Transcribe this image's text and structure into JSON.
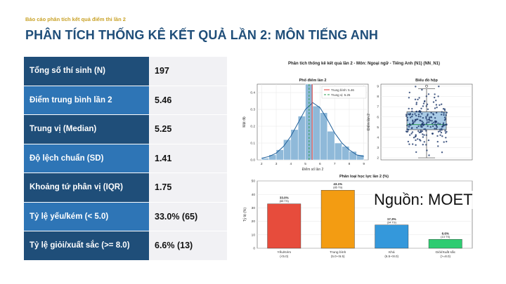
{
  "header": {
    "kicker": "Báo cáo phân tích kết quả điểm thi lần 2",
    "title": "PHÂN TÍCH THỐNG KÊ KẾT QUẢ LẦN 2: MÔN TIẾNG ANH"
  },
  "stats": [
    {
      "label": "Tổng số thí sinh (N)",
      "value": "197"
    },
    {
      "label": "Điểm trung bình lần 2",
      "value": "5.46"
    },
    {
      "label": "Trung vị (Median)",
      "value": "5.25"
    },
    {
      "label": "Độ lệch chuẩn (SD)",
      "value": "1.41"
    },
    {
      "label": "Khoảng tứ phân vị (IQR)",
      "value": "1.75"
    },
    {
      "label": "Tỷ lệ yếu/kém (< 5.0)",
      "value": "33.0% (65)"
    },
    {
      "label": "Tỷ lệ giỏi/xuất sắc (>= 8.0)",
      "value": "6.6% (13)"
    }
  ],
  "figure_title": "Phân tích thống kê kết quả lần 2 - Môn: Ngoại ngữ - Tiếng Anh (N1) (NN_N1)",
  "source": "Nguồn: MOET",
  "colors": {
    "dark_row": "#1f4e79",
    "light_row": "#2e75b6",
    "kicker": "#c9a227"
  },
  "chart_data": [
    {
      "type": "bar",
      "title": "Phổ điểm lần 2",
      "xlabel": "Điểm số lần 2",
      "ylabel": "Mật độ",
      "bins": [
        {
          "from": 2.0,
          "to": 2.5,
          "density": 0.01
        },
        {
          "from": 2.5,
          "to": 3.0,
          "density": 0.03
        },
        {
          "from": 3.0,
          "to": 3.5,
          "density": 0.06
        },
        {
          "from": 3.5,
          "to": 4.0,
          "density": 0.12
        },
        {
          "from": 4.0,
          "to": 4.5,
          "density": 0.18
        },
        {
          "from": 4.5,
          "to": 5.0,
          "density": 0.26
        },
        {
          "from": 5.0,
          "to": 5.5,
          "density": 0.45
        },
        {
          "from": 5.5,
          "to": 6.0,
          "density": 0.32
        },
        {
          "from": 6.0,
          "to": 6.5,
          "density": 0.28
        },
        {
          "from": 6.5,
          "to": 7.0,
          "density": 0.17
        },
        {
          "from": 7.0,
          "to": 7.5,
          "density": 0.1
        },
        {
          "from": 7.5,
          "to": 8.0,
          "density": 0.08
        },
        {
          "from": 8.0,
          "to": 8.5,
          "density": 0.05
        },
        {
          "from": 8.5,
          "to": 9.0,
          "density": 0.03
        }
      ],
      "kde": [
        [
          2.0,
          0.01
        ],
        [
          2.5,
          0.02
        ],
        [
          3.0,
          0.04
        ],
        [
          3.5,
          0.08
        ],
        [
          4.0,
          0.14
        ],
        [
          4.5,
          0.22
        ],
        [
          5.0,
          0.3
        ],
        [
          5.5,
          0.34
        ],
        [
          6.0,
          0.31
        ],
        [
          6.5,
          0.24
        ],
        [
          7.0,
          0.16
        ],
        [
          7.5,
          0.1
        ],
        [
          8.0,
          0.06
        ],
        [
          8.5,
          0.03
        ],
        [
          9.0,
          0.02
        ]
      ],
      "mean": 5.46,
      "median": 5.25,
      "legend": [
        "Trung bình: 5.46",
        "Trung vị: 5.25"
      ],
      "xlim": [
        1.7,
        9.3
      ],
      "ylim": [
        0,
        0.45
      ],
      "xticks": [
        "2",
        "3",
        "4",
        "5",
        "6",
        "7",
        "8",
        "9"
      ],
      "yticks": [
        "0.0",
        "0.1",
        "0.2",
        "0.3",
        "0.4"
      ]
    },
    {
      "type": "scatter",
      "title": "Biểu đồ hộp",
      "ylabel": "Điểm lần 2",
      "ylim": [
        1.8,
        9.2
      ],
      "yticks": [
        "2",
        "3",
        "4",
        "5",
        "6",
        "7",
        "8",
        "9"
      ],
      "box": {
        "q1": 4.75,
        "median": 5.25,
        "q3": 6.5,
        "whisker_low": 2.0,
        "whisker_high": 8.75
      },
      "outliers": [
        9.0
      ]
    },
    {
      "type": "bar",
      "title": "Phân loại học lực lần 2 (%)",
      "ylabel": "Tỷ lệ (%)",
      "ylim": [
        0,
        50
      ],
      "yticks": [
        "0",
        "10",
        "20",
        "30",
        "40",
        "50"
      ],
      "categories": [
        {
          "name": "Yếu/Kém",
          "range": "(<5.0)",
          "value": 33.0,
          "label": "33.0%",
          "count": "(65 TS)",
          "color": "#e74c3c"
        },
        {
          "name": "Trung bình",
          "range": "(5.0-<6.5)",
          "value": 43.1,
          "label": "43.1%",
          "count": "(85 TS)",
          "color": "#f39c12"
        },
        {
          "name": "Khá",
          "range": "(6.5-<8.0)",
          "value": 17.3,
          "label": "17.3%",
          "count": "(34 TS)",
          "color": "#3498db"
        },
        {
          "name": "Giỏi/Xuất sắc",
          "range": "(>=8.0)",
          "value": 6.6,
          "label": "6.6%",
          "count": "(13 TS)",
          "color": "#2ecc71"
        }
      ]
    }
  ]
}
